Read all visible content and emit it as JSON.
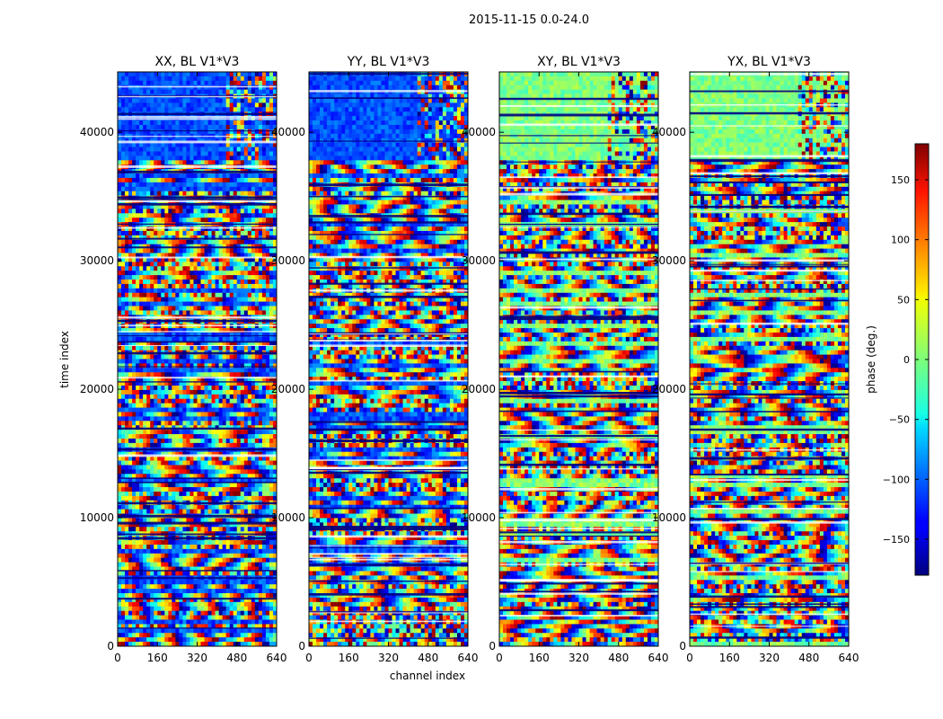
{
  "figure": {
    "suptitle": "2015-11-15 0.0-24.0",
    "xlabel": "channel index",
    "ylabel": "time index"
  },
  "chart_data": {
    "type": "heatmap",
    "colormap": "jet",
    "x_range": [
      0,
      640
    ],
    "y_range": [
      0,
      44700
    ],
    "x_ticks": [
      0,
      160,
      320,
      480,
      640
    ],
    "y_ticks": [
      0,
      10000,
      20000,
      30000,
      40000
    ],
    "panels": [
      {
        "title": "XX, BL V1*V3",
        "baseline": "blue"
      },
      {
        "title": "YY, BL V1*V3",
        "baseline": "blue"
      },
      {
        "title": "XY, BL V1*V3",
        "baseline": "green"
      },
      {
        "title": "YX, BL V1*V3",
        "baseline": "green"
      }
    ],
    "colorbar": {
      "label": "phase (deg.)",
      "range": [
        -180,
        180
      ],
      "ticks": [
        -150,
        -100,
        -50,
        0,
        50,
        100,
        150
      ],
      "tick_labels": [
        "−150",
        "−100",
        "−50",
        "0",
        "50",
        "100",
        "150"
      ]
    }
  }
}
